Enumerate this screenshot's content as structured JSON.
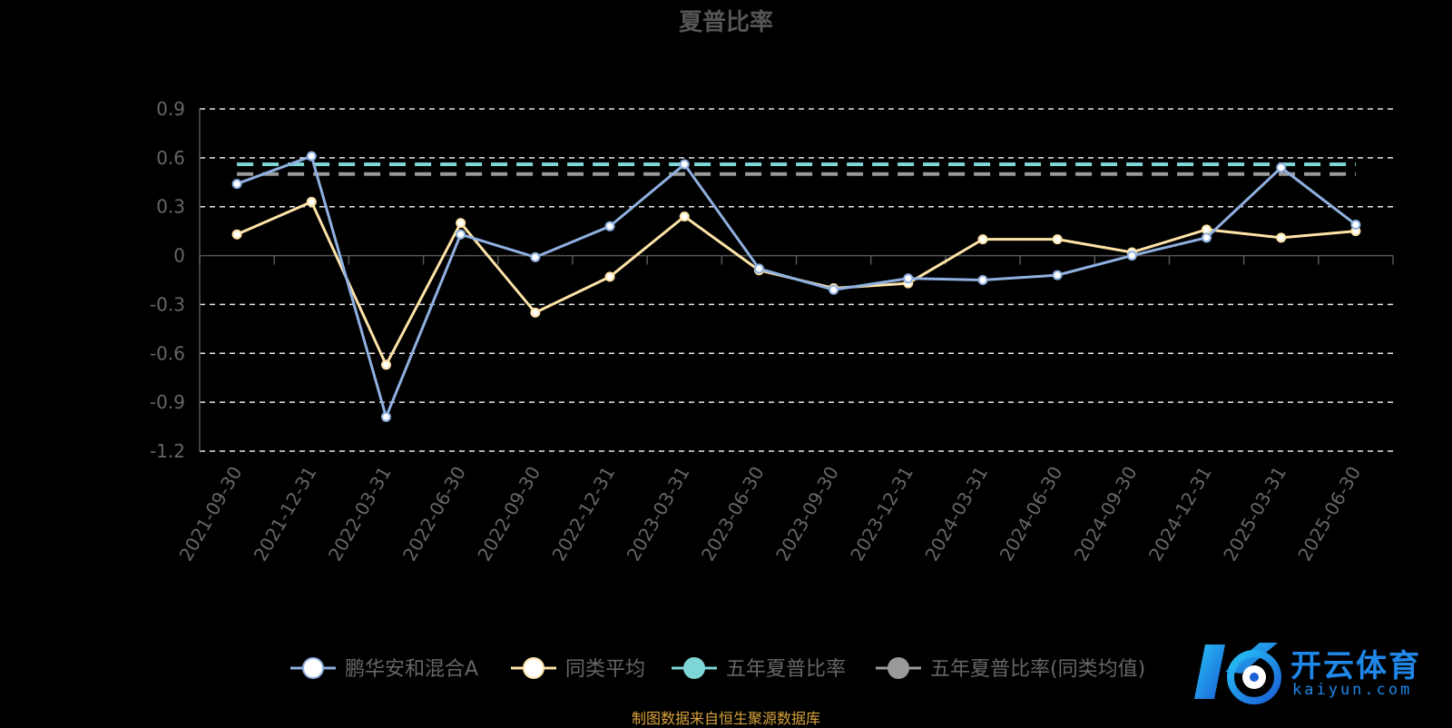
{
  "chart_data": {
    "type": "line",
    "title": "夏普比率",
    "categories": [
      "2021-09-30",
      "2021-12-31",
      "2022-03-31",
      "2022-06-30",
      "2022-09-30",
      "2022-12-31",
      "2023-03-31",
      "2023-06-30",
      "2023-09-30",
      "2023-12-31",
      "2024-03-31",
      "2024-06-30",
      "2024-09-30",
      "2024-12-31",
      "2025-03-31",
      "2025-06-30"
    ],
    "ylim": [
      -1.2,
      0.9
    ],
    "yticks": [
      "0.9",
      "0.6",
      "0.3",
      "0",
      "-0.3",
      "-0.6",
      "-0.9",
      "-1.2"
    ],
    "grid": true,
    "legend_position": "bottom",
    "series": [
      {
        "name": "鹏华安和混合A",
        "color": "#8fb0e0",
        "values": [
          0.44,
          0.61,
          -0.99,
          0.13,
          -0.01,
          0.18,
          0.56,
          -0.08,
          -0.21,
          -0.14,
          -0.15,
          -0.12,
          0.0,
          0.11,
          0.54,
          0.19
        ]
      },
      {
        "name": "同类平均",
        "color": "#fde3a7",
        "values": [
          0.13,
          0.33,
          -0.67,
          0.2,
          -0.35,
          -0.13,
          0.24,
          -0.09,
          -0.2,
          -0.17,
          0.1,
          0.1,
          0.02,
          0.16,
          0.11,
          0.15
        ]
      },
      {
        "name": "五年夏普比率",
        "color": "#7fd6d6",
        "dashed": true,
        "value": 0.56
      },
      {
        "name": "五年夏普比率(同类均值)",
        "color": "#9a9a9a",
        "dashed": true,
        "value": 0.5
      }
    ]
  },
  "footer": {
    "source": "制图数据来自恒生聚源数据库"
  },
  "logo": {
    "name": "开云体育",
    "domain": "kaiyun.com"
  }
}
